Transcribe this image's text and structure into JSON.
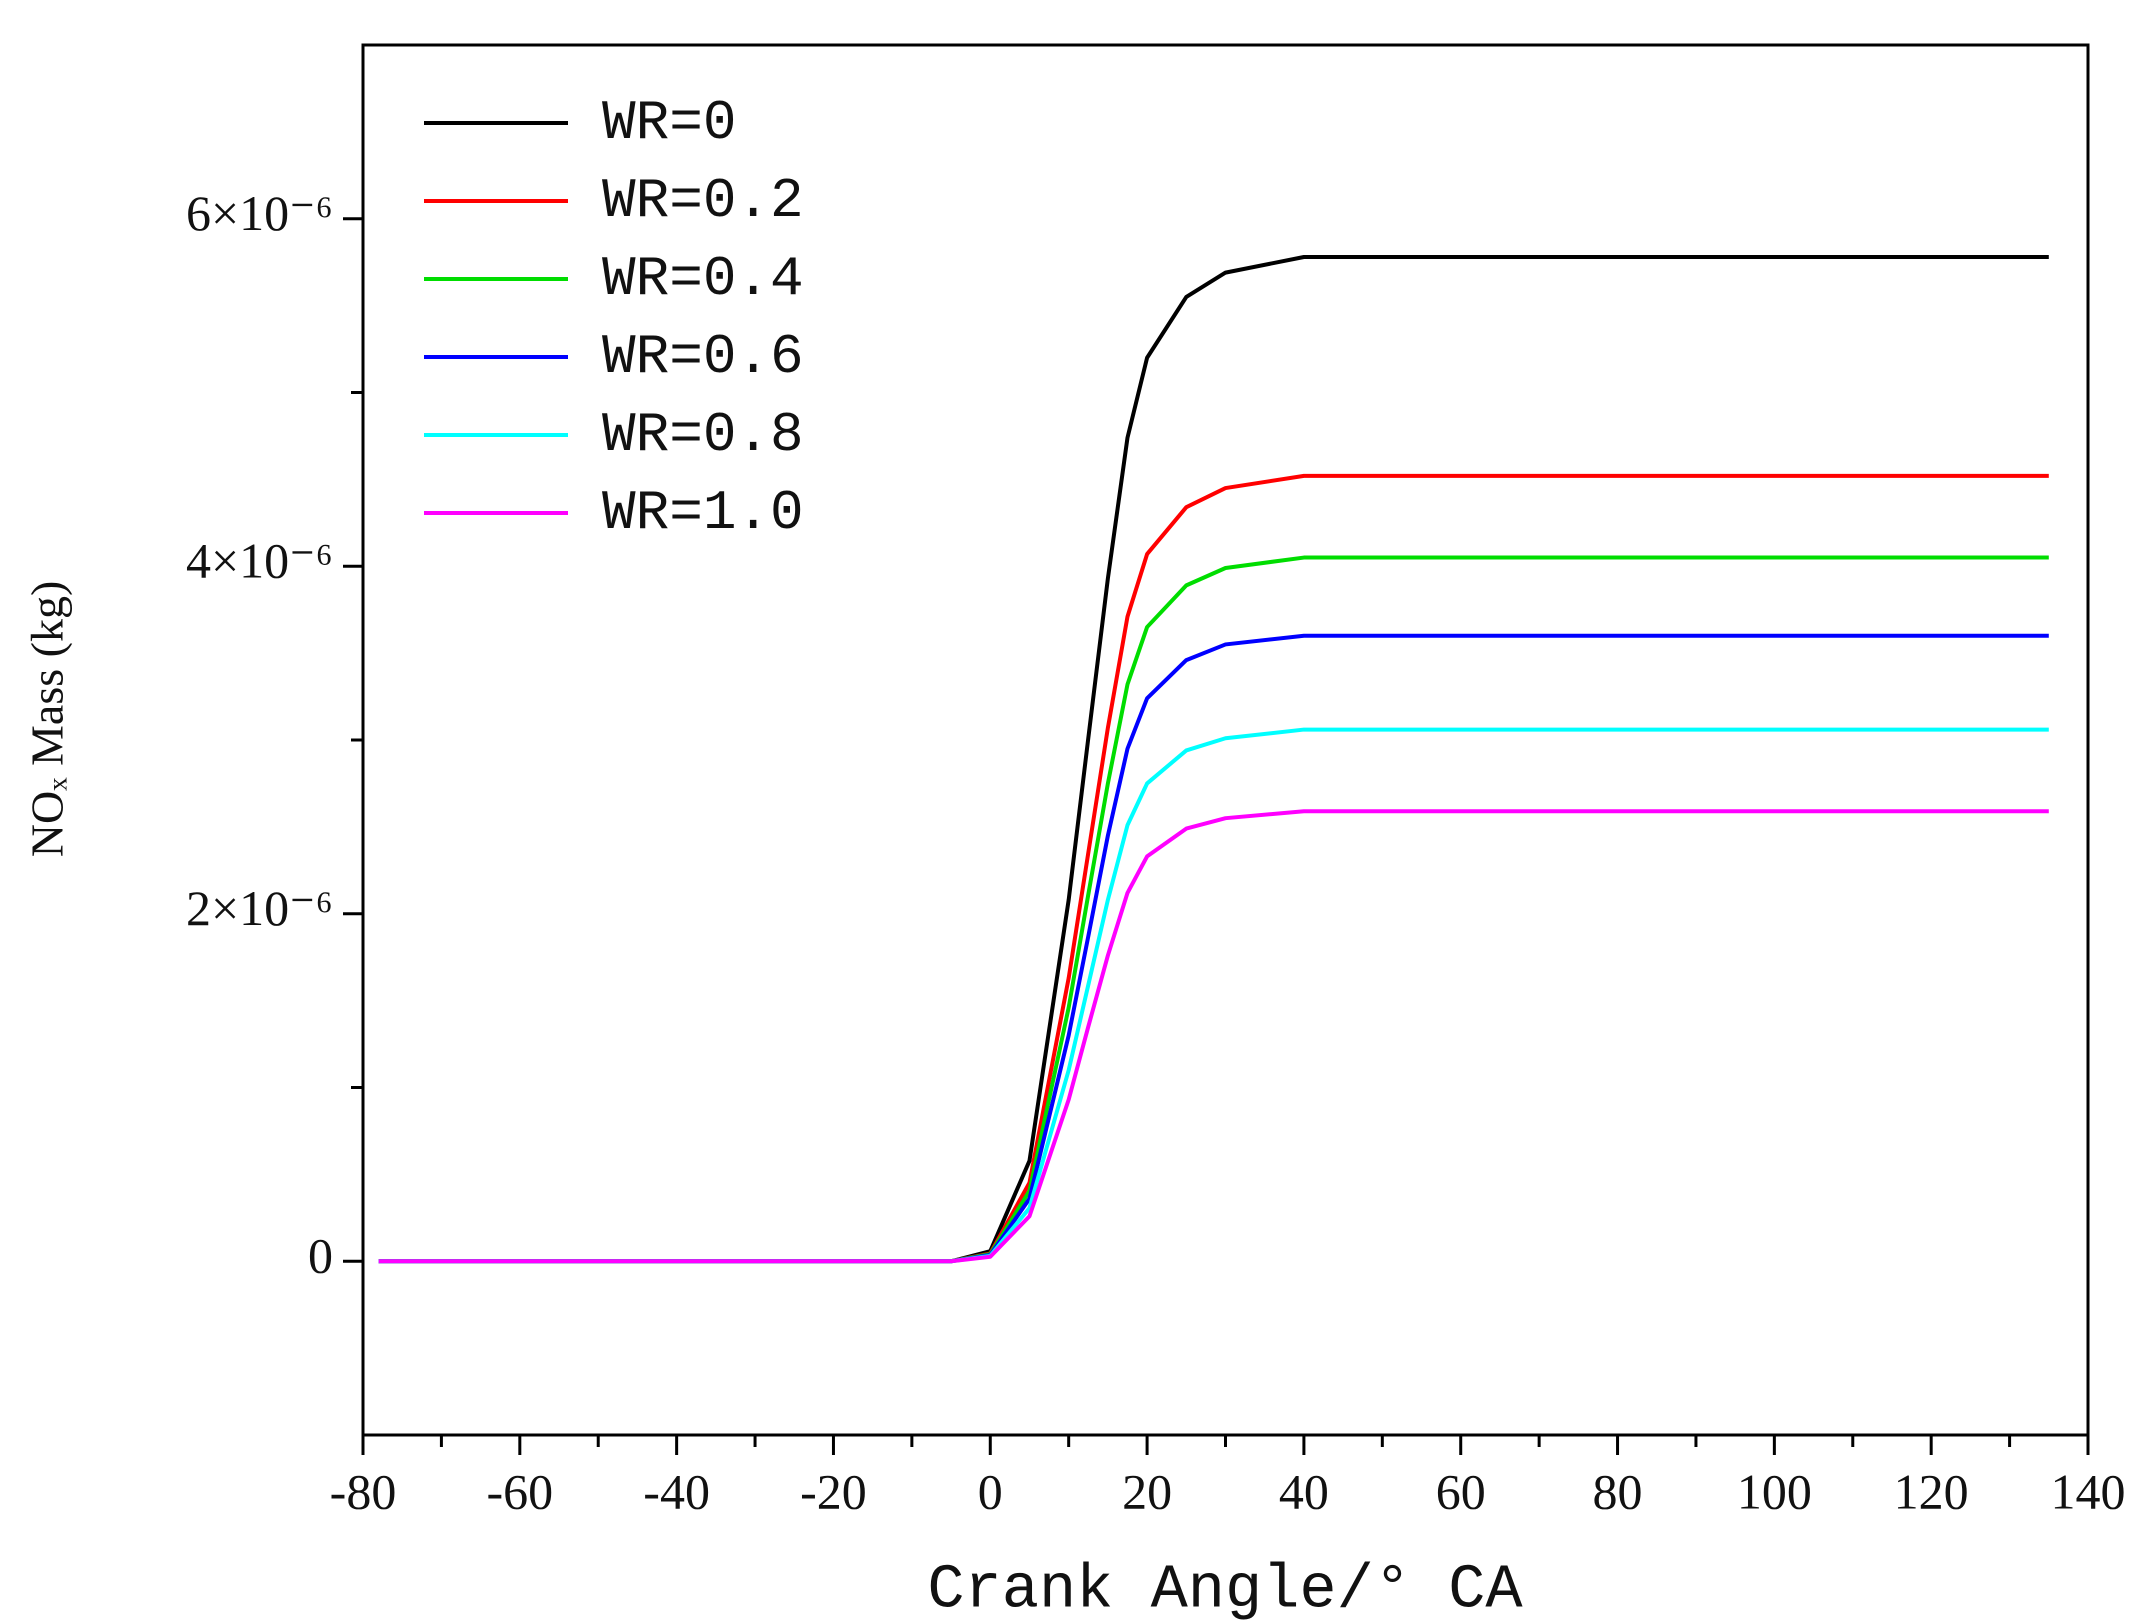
{
  "chart_data": {
    "type": "line",
    "xlabel": "Crank Angle/° CA",
    "ylabel": "NOₓ Mass (kg)",
    "x": [
      -78,
      -40,
      -5,
      0,
      5,
      10,
      12.5,
      15,
      17.5,
      20,
      25,
      30,
      40,
      60,
      135
    ],
    "series": [
      {
        "name": "WR=0",
        "color": "#000000",
        "values": [
          0,
          0,
          0,
          5.8e-08,
          5.78e-07,
          2.08e-06,
          3.01e-06,
          3.93e-06,
          4.74e-06,
          5.2e-06,
          5.55e-06,
          5.69e-06,
          5.78e-06,
          5.78e-06,
          5.78e-06
        ]
      },
      {
        "name": "WR=0.2",
        "color": "#ff0000",
        "values": [
          0,
          0,
          0,
          4.5e-08,
          4.52e-07,
          1.63e-06,
          2.35e-06,
          3.07e-06,
          3.71e-06,
          4.07e-06,
          4.34e-06,
          4.45e-06,
          4.52e-06,
          4.52e-06,
          4.52e-06
        ]
      },
      {
        "name": "WR=0.4",
        "color": "#00dd00",
        "values": [
          0,
          0,
          0,
          4.1e-08,
          4.05e-07,
          1.46e-06,
          2.11e-06,
          2.75e-06,
          3.32e-06,
          3.65e-06,
          3.89e-06,
          3.99e-06,
          4.05e-06,
          4.05e-06,
          4.05e-06
        ]
      },
      {
        "name": "WR=0.6",
        "color": "#0000ff",
        "values": [
          0,
          0,
          0,
          3.6e-08,
          3.6e-07,
          1.3e-06,
          1.87e-06,
          2.45e-06,
          2.95e-06,
          3.24e-06,
          3.46e-06,
          3.55e-06,
          3.6e-06,
          3.6e-06,
          3.6e-06
        ]
      },
      {
        "name": "WR=0.8",
        "color": "#00ffff",
        "values": [
          0,
          0,
          0,
          3.1e-08,
          3.06e-07,
          1.1e-06,
          1.59e-06,
          2.08e-06,
          2.51e-06,
          2.75e-06,
          2.94e-06,
          3.01e-06,
          3.06e-06,
          3.06e-06,
          3.06e-06
        ]
      },
      {
        "name": "WR=1.0",
        "color": "#ff00ff",
        "values": [
          0,
          0,
          0,
          2.6e-08,
          2.59e-07,
          9.3e-07,
          1.35e-06,
          1.76e-06,
          2.12e-06,
          2.33e-06,
          2.49e-06,
          2.55e-06,
          2.59e-06,
          2.59e-06,
          2.59e-06
        ]
      }
    ],
    "xlim": [
      -80,
      140
    ],
    "xticks": [
      -80,
      -60,
      -40,
      -20,
      0,
      20,
      40,
      60,
      80,
      100,
      120,
      140
    ],
    "xminor_ticks": [
      -70,
      -50,
      -30,
      -10,
      10,
      30,
      50,
      70,
      90,
      110,
      130
    ],
    "ylim": [
      -1e-06,
      7e-06
    ],
    "yticks": [
      0,
      {
        "value": 2e-06,
        "label": "2×10⁻⁶"
      },
      {
        "value": 4e-06,
        "label": "4×10⁻⁶"
      },
      {
        "value": 6e-06,
        "label": "6×10⁻⁶"
      }
    ],
    "yminor_ticks": [
      1e-06,
      3e-06,
      5e-06
    ],
    "legend": "upper left"
  }
}
